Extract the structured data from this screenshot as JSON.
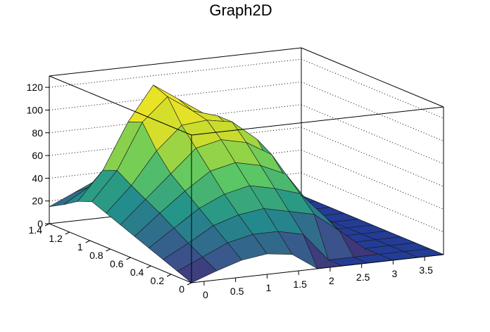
{
  "chart_data": {
    "type": "surface",
    "title": "Graph2D",
    "xlabel": "",
    "ylabel": "",
    "zlabel": "",
    "xlim": [
      -0.2,
      3.8
    ],
    "ylim": [
      0,
      1.4
    ],
    "zlim": [
      0,
      130
    ],
    "grid": true,
    "colormap": "viridis",
    "x_ticks": [
      {
        "value": 0,
        "label": "0"
      },
      {
        "value": 0.5,
        "label": "0.5"
      },
      {
        "value": 1,
        "label": "1"
      },
      {
        "value": 1.5,
        "label": "1.5"
      },
      {
        "value": 2,
        "label": "2"
      },
      {
        "value": 2.5,
        "label": "2.5"
      },
      {
        "value": 3,
        "label": "3"
      },
      {
        "value": 3.5,
        "label": "3.5"
      }
    ],
    "y_ticks": [
      {
        "value": 0,
        "label": "0"
      },
      {
        "value": 0.2,
        "label": "0.2"
      },
      {
        "value": 0.4,
        "label": "0.4"
      },
      {
        "value": 0.6,
        "label": "0.6"
      },
      {
        "value": 0.8,
        "label": "0.8"
      },
      {
        "value": 1,
        "label": "1"
      },
      {
        "value": 1.2,
        "label": "1.2"
      },
      {
        "value": 1.4,
        "label": "1.4"
      }
    ],
    "z_ticks": [
      {
        "value": 0,
        "label": "0"
      },
      {
        "value": 20,
        "label": "20"
      },
      {
        "value": 40,
        "label": "40"
      },
      {
        "value": 60,
        "label": "60"
      },
      {
        "value": 80,
        "label": "80"
      },
      {
        "value": 100,
        "label": "100"
      },
      {
        "value": 120,
        "label": "120"
      }
    ],
    "surface": {
      "x": [
        -0.2,
        0.2,
        0.6,
        1.0,
        1.4,
        1.8,
        2.2,
        2.6,
        3.0,
        3.4,
        3.8
      ],
      "y": [
        1.4,
        1.26,
        1.12,
        0.98,
        0.84,
        0.7,
        0.56,
        0.42,
        0.28,
        0.14,
        0.0
      ],
      "z": [
        [
          15,
          25,
          35,
          42,
          45,
          40,
          30,
          15,
          0,
          0,
          0
        ],
        [
          22,
          35,
          55,
          75,
          85,
          80,
          60,
          25,
          0,
          0,
          0
        ],
        [
          30,
          55,
          95,
          125,
          110,
          95,
          70,
          30,
          0,
          0,
          0
        ],
        [
          35,
          60,
          100,
          120,
          105,
          98,
          75,
          32,
          0,
          0,
          0
        ],
        [
          30,
          52,
          80,
          100,
          102,
          98,
          80,
          35,
          0,
          0,
          0
        ],
        [
          25,
          45,
          65,
          85,
          90,
          85,
          72,
          33,
          0,
          0,
          0
        ],
        [
          20,
          38,
          55,
          70,
          75,
          70,
          60,
          30,
          0,
          0,
          0
        ],
        [
          15,
          30,
          45,
          55,
          60,
          55,
          48,
          25,
          0,
          0,
          0
        ],
        [
          10,
          22,
          35,
          42,
          45,
          40,
          35,
          18,
          0,
          0,
          0
        ],
        [
          5,
          15,
          25,
          30,
          30,
          25,
          0,
          0,
          0,
          0,
          0
        ],
        [
          0,
          8,
          15,
          18,
          15,
          0,
          0,
          0,
          0,
          0,
          0
        ]
      ]
    }
  }
}
